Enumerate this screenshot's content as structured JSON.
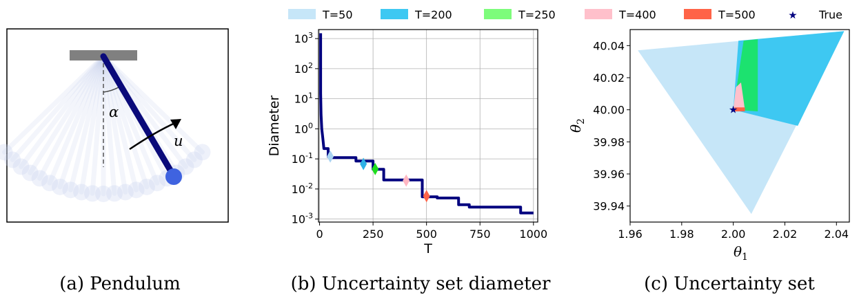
{
  "colors": {
    "navy": "#00007f",
    "T50": "#c6e6f8",
    "T200": "#3ec8f2",
    "T250": "#7dfc7b",
    "T400": "#ffc0cb",
    "T500": "#ff6347",
    "rod": "#0a0a7a",
    "bob": "#3f63e0",
    "ceiling": "#808080"
  },
  "legend": {
    "entries": [
      {
        "label": "T=50",
        "color": "#c6e6f8",
        "kind": "patch"
      },
      {
        "label": "T=200",
        "color": "#3ec8f2",
        "kind": "patch"
      },
      {
        "label": "T=250",
        "color": "#7dfc7b",
        "kind": "patch"
      },
      {
        "label": "T=400",
        "color": "#ffc0cb",
        "kind": "patch"
      },
      {
        "label": "T=500",
        "color": "#ff6347",
        "kind": "patch"
      },
      {
        "label": "True",
        "color": "#00007f",
        "kind": "star"
      }
    ]
  },
  "panel_a": {
    "caption": "(a) Pendulum",
    "angle_symbol": "α",
    "control_symbol": "u"
  },
  "chart_data": [
    {
      "type": "line",
      "title": "",
      "caption": "(b) Uncertainty set diameter",
      "xlabel": "T",
      "ylabel": "Diameter",
      "xlim": [
        -5,
        1020
      ],
      "ylim_log10": [
        -3.1,
        3.3
      ],
      "yscale": "log",
      "grid": true,
      "xticks": [
        0,
        250,
        500,
        750,
        1000
      ],
      "xtick_labels": [
        "0",
        "250",
        "500",
        "750",
        "1000"
      ],
      "yticks_exp": [
        -3,
        -2,
        -1,
        0,
        1,
        2,
        3
      ],
      "yticks_base": "10",
      "series": [
        {
          "name": "Diameter",
          "step_points": [
            [
              5,
              1500
            ],
            [
              5,
              15
            ],
            [
              7,
              3
            ],
            [
              10,
              1.0
            ],
            [
              15,
              0.5
            ],
            [
              20,
              0.22
            ],
            [
              40,
              0.22
            ],
            [
              40,
              0.12
            ],
            [
              50,
              0.12
            ],
            [
              55,
              0.11
            ],
            [
              170,
              0.11
            ],
            [
              170,
              0.085
            ],
            [
              250,
              0.085
            ],
            [
              250,
              0.045
            ],
            [
              300,
              0.045
            ],
            [
              300,
              0.02
            ],
            [
              480,
              0.02
            ],
            [
              480,
              0.0055
            ],
            [
              550,
              0.0055
            ],
            [
              550,
              0.005
            ],
            [
              650,
              0.005
            ],
            [
              650,
              0.003
            ],
            [
              700,
              0.003
            ],
            [
              700,
              0.0025
            ],
            [
              940,
              0.0025
            ],
            [
              940,
              0.0016
            ],
            [
              1000,
              0.0016
            ]
          ]
        }
      ],
      "markers": [
        {
          "name": "T=50",
          "x": 50,
          "y": 0.12,
          "color": "#a9d3f2"
        },
        {
          "name": "T=200",
          "x": 205,
          "y": 0.068,
          "color": "#2fb0e6"
        },
        {
          "name": "T=250",
          "x": 260,
          "y": 0.046,
          "color": "#1edd1e"
        },
        {
          "name": "T=400",
          "x": 405,
          "y": 0.019,
          "color": "#ffb6c1"
        },
        {
          "name": "T=500",
          "x": 500,
          "y": 0.0058,
          "color": "#ff6347"
        }
      ]
    },
    {
      "type": "area",
      "title": "",
      "caption": "(c) Uncertainty set",
      "xlabel": "θ1",
      "ylabel": "θ2",
      "xlabel_main": "θ",
      "xlabel_sub": "1",
      "ylabel_main": "θ",
      "ylabel_sub": "2",
      "xlim": [
        1.96,
        2.045
      ],
      "ylim": [
        39.93,
        40.05
      ],
      "grid": false,
      "xticks": [
        1.96,
        1.98,
        2.0,
        2.02,
        2.04
      ],
      "xtick_labels": [
        "1.96",
        "1.98",
        "2.00",
        "2.02",
        "2.04"
      ],
      "yticks": [
        39.94,
        39.96,
        39.98,
        40.0,
        40.02,
        40.04
      ],
      "ytick_labels": [
        "39.94",
        "39.96",
        "39.98",
        "40.00",
        "40.02",
        "40.04"
      ],
      "regions": [
        {
          "name": "T=50",
          "color": "#c6e6f8",
          "polygon": [
            [
              1.963,
              40.037
            ],
            [
              2.043,
              40.049
            ],
            [
              2.007,
              39.935
            ]
          ]
        },
        {
          "name": "T=200",
          "color": "#3ec8f2",
          "polygon": [
            [
              2.002,
              40.043
            ],
            [
              2.043,
              40.049
            ],
            [
              2.025,
              39.99
            ],
            [
              2.0,
              40.0
            ]
          ]
        },
        {
          "name": "T=250",
          "color": "#1ce26f",
          "polygon": [
            [
              2.004,
              40.043
            ],
            [
              2.0095,
              40.044
            ],
            [
              2.0095,
              39.999
            ],
            [
              2.0,
              40.0
            ]
          ]
        },
        {
          "name": "T=400",
          "color": "#ffc0cb",
          "polygon": [
            [
              2.001,
              40.014
            ],
            [
              2.003,
              40.017
            ],
            [
              2.0045,
              40.0
            ],
            [
              2.0,
              40.0
            ]
          ]
        },
        {
          "name": "T=500",
          "color": "#ff6347",
          "polygon": [
            [
              2.0005,
              40.0015
            ],
            [
              2.0045,
              40.0015
            ],
            [
              2.0045,
              39.999
            ],
            [
              2.0005,
              39.999
            ]
          ]
        }
      ],
      "true_point": {
        "name": "True",
        "x": 2.0,
        "y": 40.0,
        "color": "#00007f"
      }
    }
  ]
}
